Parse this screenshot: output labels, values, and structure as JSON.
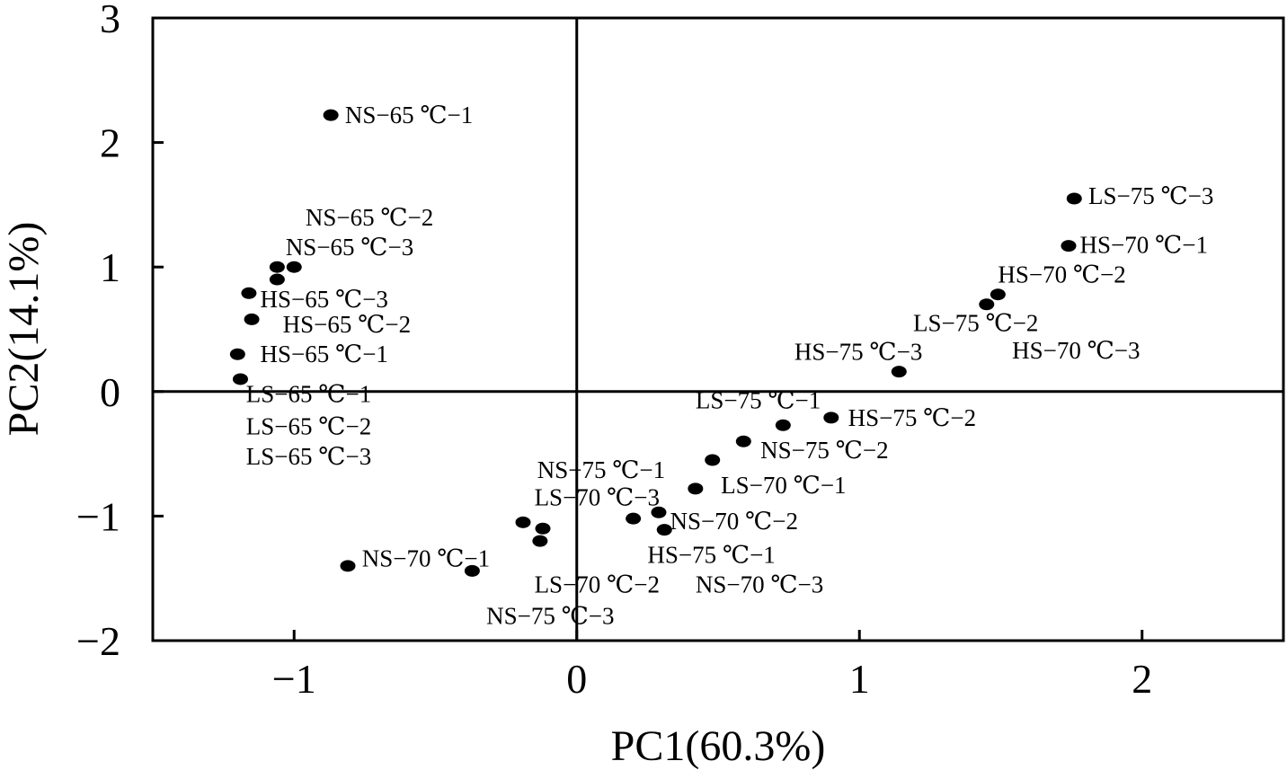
{
  "chart_data": {
    "type": "scatter",
    "title": "",
    "xlabel": "PC1(60.3%)",
    "ylabel": "PC2(14.1%)",
    "xlim": [
      -1.5,
      2.5
    ],
    "ylim": [
      -2,
      3
    ],
    "xticks": [
      {
        "value": -1,
        "label": "−1"
      },
      {
        "value": 0,
        "label": "0"
      },
      {
        "value": 1,
        "label": "1"
      },
      {
        "value": 2,
        "label": "2"
      }
    ],
    "yticks": [
      {
        "value": -2,
        "label": "−2"
      },
      {
        "value": -1,
        "label": "−1"
      },
      {
        "value": 0,
        "label": "0"
      },
      {
        "value": 1,
        "label": "1"
      },
      {
        "value": 2,
        "label": "2"
      },
      {
        "value": 3,
        "label": "3"
      }
    ],
    "zero_lines": true,
    "grid": false,
    "points": [
      {
        "x": -0.87,
        "y": 2.22
      },
      {
        "x": -1.06,
        "y": 1.0
      },
      {
        "x": -1.0,
        "y": 1.0
      },
      {
        "x": -1.06,
        "y": 0.9
      },
      {
        "x": -1.16,
        "y": 0.79
      },
      {
        "x": -1.15,
        "y": 0.58
      },
      {
        "x": -1.2,
        "y": 0.3
      },
      {
        "x": -1.19,
        "y": 0.1
      },
      {
        "x": 1.76,
        "y": 1.55
      },
      {
        "x": 1.74,
        "y": 1.17
      },
      {
        "x": 1.49,
        "y": 0.78
      },
      {
        "x": 1.45,
        "y": 0.7
      },
      {
        "x": 1.14,
        "y": 0.16
      },
      {
        "x": 0.9,
        "y": -0.21
      },
      {
        "x": 0.73,
        "y": -0.27
      },
      {
        "x": 0.59,
        "y": -0.4
      },
      {
        "x": 0.48,
        "y": -0.55
      },
      {
        "x": 0.42,
        "y": -0.78
      },
      {
        "x": 0.29,
        "y": -0.97
      },
      {
        "x": 0.2,
        "y": -1.02
      },
      {
        "x": 0.31,
        "y": -1.11
      },
      {
        "x": -0.19,
        "y": -1.05
      },
      {
        "x": -0.12,
        "y": -1.1
      },
      {
        "x": -0.13,
        "y": -1.2
      },
      {
        "x": -0.37,
        "y": -1.44
      },
      {
        "x": -0.81,
        "y": -1.4
      }
    ],
    "annotations": [
      {
        "text": "NS−65 ℃−1",
        "x": -0.82,
        "y": 2.22
      },
      {
        "text": "NS−65 ℃−2",
        "x": -0.96,
        "y": 1.4
      },
      {
        "text": "NS−65 ℃−3",
        "x": -1.03,
        "y": 1.16
      },
      {
        "text": "HS−65 ℃−3",
        "x": -1.12,
        "y": 0.74
      },
      {
        "text": "HS−65 ℃−2",
        "x": -1.04,
        "y": 0.54
      },
      {
        "text": "HS−65 ℃−1",
        "x": -1.12,
        "y": 0.3
      },
      {
        "text": "LS−65 ℃−1",
        "x": -1.17,
        "y": -0.02
      },
      {
        "text": "LS−65 ℃−2",
        "x": -1.17,
        "y": -0.28
      },
      {
        "text": "LS−65 ℃−3",
        "x": -1.17,
        "y": -0.52
      },
      {
        "text": "LS−75 ℃−3",
        "x": 1.81,
        "y": 1.57
      },
      {
        "text": "HS−70 ℃−1",
        "x": 1.78,
        "y": 1.18
      },
      {
        "text": "HS−70 ℃−2",
        "x": 1.49,
        "y": 0.94
      },
      {
        "text": "LS−75 ℃−2",
        "x": 1.19,
        "y": 0.55
      },
      {
        "text": "HS−70 ℃−3",
        "x": 1.54,
        "y": 0.33
      },
      {
        "text": "HS−75 ℃−3",
        "x": 0.77,
        "y": 0.32
      },
      {
        "text": "LS−75 ℃−1",
        "x": 0.42,
        "y": -0.07
      },
      {
        "text": "HS−75 ℃−2",
        "x": 0.96,
        "y": -0.21
      },
      {
        "text": "NS−75 ℃−2",
        "x": 0.65,
        "y": -0.47
      },
      {
        "text": "NS−75 ℃−1",
        "x": -0.14,
        "y": -0.63
      },
      {
        "text": "LS−70 ℃−1",
        "x": 0.51,
        "y": -0.75
      },
      {
        "text": "LS−70 ℃−3",
        "x": -0.15,
        "y": -0.85
      },
      {
        "text": "NS−70 ℃−2",
        "x": 0.33,
        "y": -1.04
      },
      {
        "text": "HS−75 ℃−1",
        "x": 0.25,
        "y": -1.31
      },
      {
        "text": "NS−70 ℃−1",
        "x": -0.76,
        "y": -1.34
      },
      {
        "text": "LS−70 ℃−2",
        "x": -0.15,
        "y": -1.55
      },
      {
        "text": "NS−70 ℃−3",
        "x": 0.42,
        "y": -1.55
      },
      {
        "text": "NS−75 ℃−3",
        "x": -0.32,
        "y": -1.8
      }
    ]
  }
}
